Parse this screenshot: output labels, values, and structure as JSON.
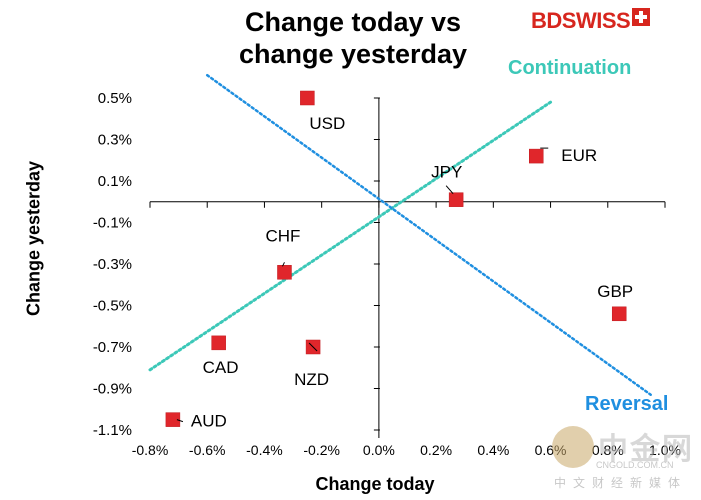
{
  "chart_data": {
    "type": "scatter",
    "title": "Change today vs change yesterday",
    "title_lines": [
      "Change today vs",
      "change yesterday"
    ],
    "xlabel": "Change today",
    "ylabel": "Change yesterday",
    "xlim": [
      -0.8,
      1.0
    ],
    "ylim": [
      -1.1,
      0.6
    ],
    "x_ticks": [
      "-0.8%",
      "-0.6%",
      "-0.4%",
      "-0.2%",
      "0.0%",
      "0.2%",
      "0.4%",
      "0.6%",
      "0.8%",
      "1.0%"
    ],
    "x_tick_values": [
      -0.8,
      -0.6,
      -0.4,
      -0.2,
      0.0,
      0.2,
      0.4,
      0.6,
      0.8,
      1.0
    ],
    "y_ticks": [
      "0.5%",
      "0.3%",
      "0.1%",
      "-0.1%",
      "-0.3%",
      "-0.5%",
      "-0.7%",
      "-0.9%",
      "-1.1%"
    ],
    "y_tick_values": [
      0.5,
      0.3,
      0.1,
      -0.1,
      -0.3,
      -0.5,
      -0.7,
      -0.9,
      -1.1
    ],
    "points": [
      {
        "label": "USD",
        "x": -0.25,
        "y": 0.5
      },
      {
        "label": "EUR",
        "x": 0.55,
        "y": 0.22
      },
      {
        "label": "JPY",
        "x": 0.27,
        "y": 0.01
      },
      {
        "label": "GBP",
        "x": 0.84,
        "y": -0.54
      },
      {
        "label": "CHF",
        "x": -0.33,
        "y": -0.34
      },
      {
        "label": "CAD",
        "x": -0.56,
        "y": -0.68
      },
      {
        "label": "NZD",
        "x": -0.23,
        "y": -0.7
      },
      {
        "label": "AUD",
        "x": -0.72,
        "y": -1.05
      }
    ],
    "trendlines": [
      {
        "name": "Continuation",
        "from": [
          -0.8,
          -0.81
        ],
        "to": [
          0.6,
          0.48
        ],
        "color": "#3cc8b8"
      },
      {
        "name": "Reversal",
        "from": [
          -0.6,
          0.61
        ],
        "to": [
          0.95,
          -0.93
        ],
        "color": "#1f8fe0"
      }
    ],
    "marker_color": "#e0262b"
  },
  "brand": {
    "logo_bd": "BD",
    "logo_swiss": "SWISS"
  },
  "annotations": {
    "continuation": "Continuation",
    "reversal": "Reversal"
  },
  "watermark": {
    "main": "中金网",
    "domain": "CNGOLD.COM.CN",
    "sub": "中文财经新媒体"
  }
}
